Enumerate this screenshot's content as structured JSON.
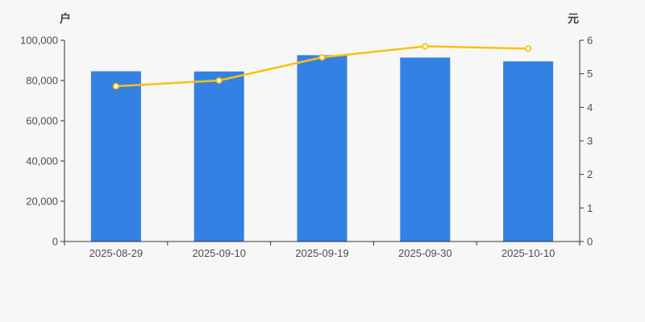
{
  "page": {
    "background": "#f7f7f7"
  },
  "chart_data": {
    "type": "combo-bar-line",
    "title": "",
    "categories": [
      "2025-08-29",
      "2025-09-10",
      "2025-09-19",
      "2025-09-30",
      "2025-10-10"
    ],
    "series": [
      {
        "id": "bar-series",
        "type": "bar",
        "axis": "left",
        "color": "#3381e3",
        "values": [
          84600,
          84500,
          92600,
          91400,
          89500
        ]
      },
      {
        "id": "line-series",
        "type": "line",
        "axis": "right",
        "color": "#fac20e",
        "marker_fill": "#ffffff",
        "values": [
          4.63,
          4.8,
          5.49,
          5.82,
          5.75
        ]
      }
    ],
    "left_axis": {
      "unit_label": "户",
      "min": 0,
      "max": 100000,
      "tick_step": 20000,
      "tick_labels": [
        "0",
        "20,000",
        "40,000",
        "60,000",
        "80,000",
        "100,000"
      ]
    },
    "right_axis": {
      "unit_label": "元",
      "min": 0,
      "max": 6,
      "tick_step": 1,
      "tick_labels": [
        "0",
        "1",
        "2",
        "3",
        "4",
        "5",
        "6"
      ]
    },
    "legend": "none",
    "grid": false,
    "axis_color": "#333333",
    "tick_label_color": "#4d4d4d"
  }
}
